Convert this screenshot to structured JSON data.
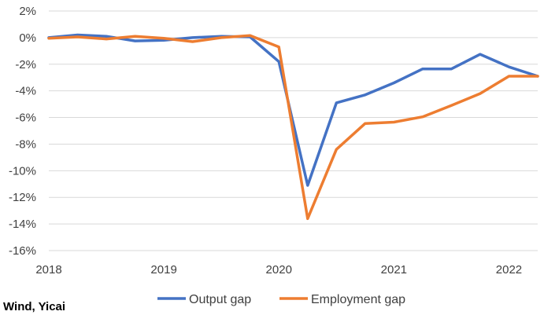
{
  "chart_data": {
    "type": "line",
    "title": "",
    "xlabel": "",
    "ylabel": "",
    "x_ticks": [
      "2018",
      "2019",
      "2020",
      "2021",
      "2022"
    ],
    "y_ticks": [
      "2%",
      "0%",
      "-2%",
      "-4%",
      "-6%",
      "-8%",
      "-10%",
      "-12%",
      "-14%",
      "-16%"
    ],
    "xlim": [
      2018.0,
      2022.25
    ],
    "ylim": [
      -16,
      2
    ],
    "grid": "horizontal",
    "legend": "bottom",
    "source": "Wind, Yicai",
    "series": [
      {
        "name": "Output gap",
        "color": "#4472C4",
        "points": [
          [
            2018.0,
            0.0
          ],
          [
            2018.25,
            0.2
          ],
          [
            2018.5,
            0.1
          ],
          [
            2018.75,
            -0.25
          ],
          [
            2019.0,
            -0.2
          ],
          [
            2019.25,
            0.0
          ],
          [
            2019.5,
            0.1
          ],
          [
            2019.75,
            0.05
          ],
          [
            2020.0,
            -1.8
          ],
          [
            2020.25,
            -11.1
          ],
          [
            2020.5,
            -4.9
          ],
          [
            2020.75,
            -4.3
          ],
          [
            2021.0,
            -3.4
          ],
          [
            2021.25,
            -2.35
          ],
          [
            2021.5,
            -2.35
          ],
          [
            2021.75,
            -1.25
          ],
          [
            2022.0,
            -2.2
          ],
          [
            2022.25,
            -2.9
          ]
        ]
      },
      {
        "name": "Employment gap",
        "color": "#ED7D31",
        "points": [
          [
            2018.0,
            -0.05
          ],
          [
            2018.25,
            0.05
          ],
          [
            2018.5,
            -0.1
          ],
          [
            2018.75,
            0.1
          ],
          [
            2019.0,
            -0.05
          ],
          [
            2019.25,
            -0.3
          ],
          [
            2019.5,
            0.0
          ],
          [
            2019.75,
            0.15
          ],
          [
            2020.0,
            -0.7
          ],
          [
            2020.25,
            -13.6
          ],
          [
            2020.5,
            -8.4
          ],
          [
            2020.75,
            -6.45
          ],
          [
            2021.0,
            -6.35
          ],
          [
            2021.25,
            -5.95
          ],
          [
            2021.5,
            -5.1
          ],
          [
            2021.75,
            -4.2
          ],
          [
            2022.0,
            -2.9
          ],
          [
            2022.25,
            -2.9
          ]
        ]
      }
    ]
  }
}
